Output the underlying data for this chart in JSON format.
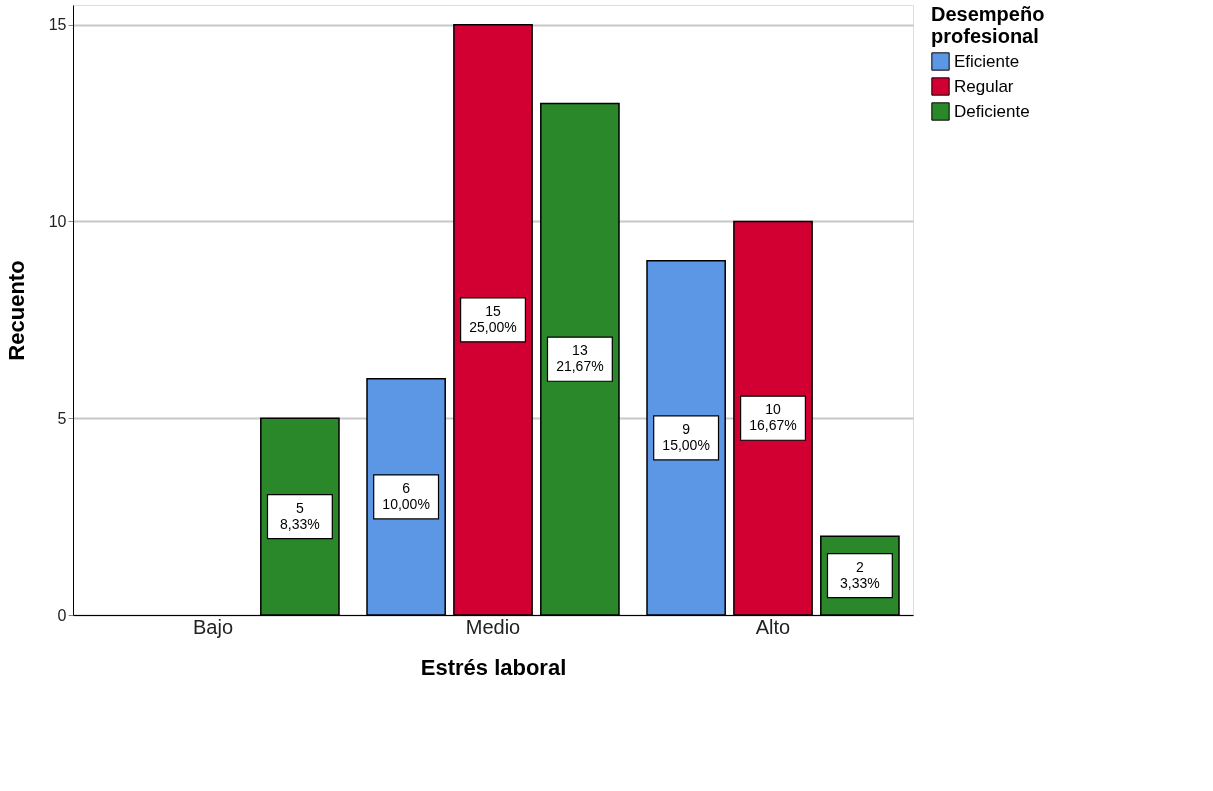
{
  "chart_data": {
    "type": "bar",
    "xlabel": "Estrés laboral",
    "ylabel": "Recuento",
    "legend_title": "Desempeño profesional",
    "categories": [
      "Bajo",
      "Medio",
      "Alto"
    ],
    "series": [
      {
        "name": "Eficiente",
        "color": "#5b97e4",
        "values": [
          null,
          6,
          9
        ],
        "value_labels": [
          null,
          "6\n10,00%",
          "9\n15,00%"
        ]
      },
      {
        "name": "Regular",
        "color": "#d20032",
        "values": [
          null,
          15,
          10
        ],
        "value_labels": [
          null,
          "15\n25,00%",
          "10\n16,67%"
        ]
      },
      {
        "name": "Deficiente",
        "color": "#2a882a",
        "values": [
          5,
          13,
          2
        ],
        "value_labels": [
          "5\n8,33%",
          "13\n21,67%",
          "2\n3,33%"
        ]
      }
    ],
    "ylim": [
      0,
      15.5
    ],
    "yticks": [
      0,
      5,
      10,
      15
    ],
    "grid": "y",
    "legend": "top right"
  }
}
